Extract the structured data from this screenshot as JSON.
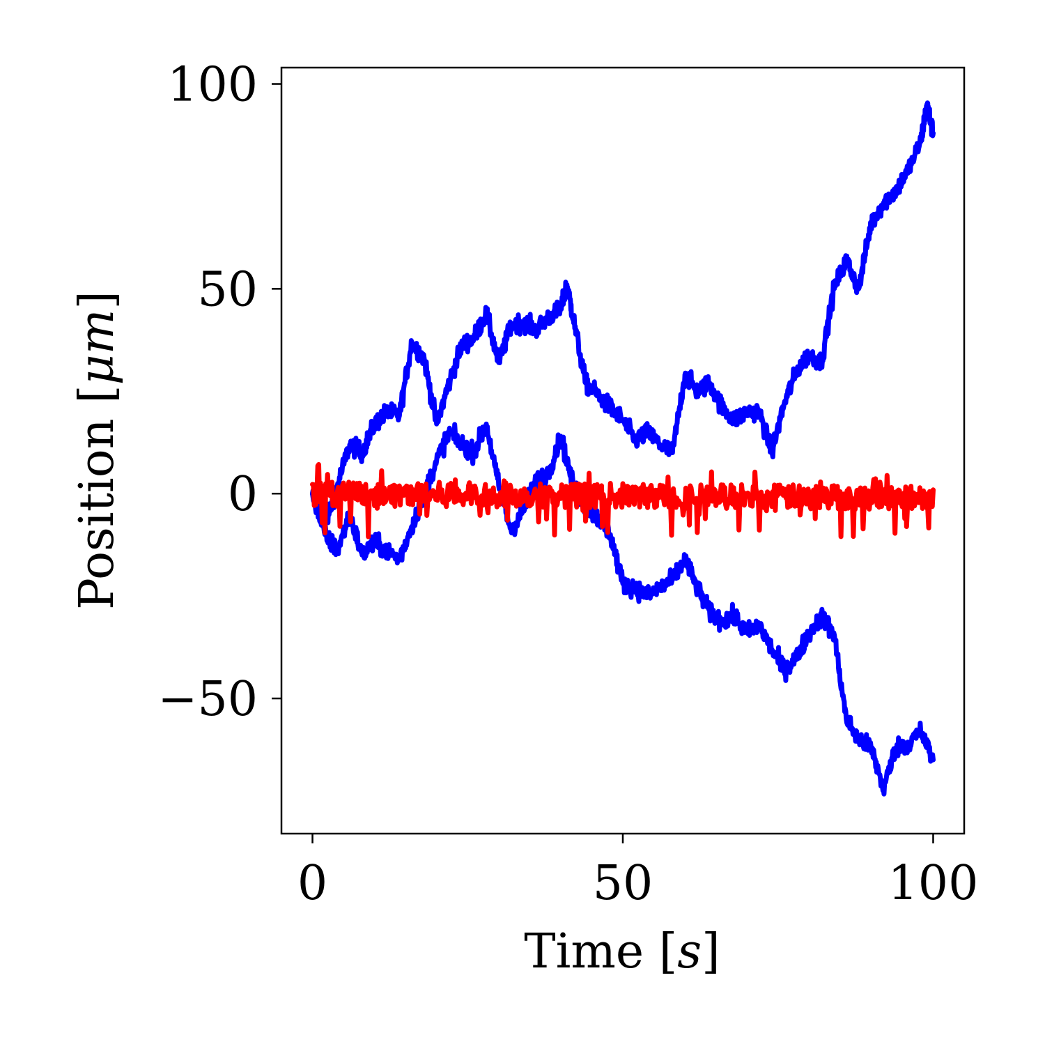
{
  "chart_data": {
    "type": "line",
    "xlabel": "Time [s]",
    "ylabel": "Position [μm]",
    "xlabel_parts": {
      "text": "Time [",
      "var": "s",
      "close": "]"
    },
    "ylabel_parts": {
      "text": "Position [",
      "var": "μm",
      "close": "]"
    },
    "xlim": [
      -5,
      105
    ],
    "ylim": [
      -83,
      104
    ],
    "xticks": [
      0,
      50,
      100
    ],
    "xtick_labels": [
      "0",
      "50",
      "100"
    ],
    "yticks": [
      -50,
      0,
      50,
      100
    ],
    "ytick_labels": [
      "−50",
      "0",
      "50",
      "100"
    ],
    "grid": false,
    "legend": "none",
    "series": [
      {
        "color": "#0000ff",
        "kind": "random-walk",
        "x": [
          0,
          2,
          4,
          6,
          8,
          10,
          12,
          14,
          16,
          18,
          20,
          22,
          24,
          26,
          28,
          30,
          32,
          34,
          36,
          38,
          40,
          41,
          42,
          44,
          46,
          48,
          50,
          52,
          54,
          56,
          58,
          60,
          62,
          64,
          66,
          68,
          70,
          72,
          74,
          76,
          78,
          80,
          82,
          84,
          86,
          88,
          90,
          92,
          94,
          96,
          98,
          99,
          100
        ],
        "values": [
          0,
          -8,
          2,
          12,
          10,
          17,
          20,
          19,
          37,
          33,
          17,
          27,
          36,
          38,
          44,
          32,
          41,
          42,
          40,
          43,
          45,
          51,
          43,
          27,
          24,
          21,
          18,
          13,
          15,
          12,
          10,
          29,
          25,
          27,
          21,
          18,
          20,
          20,
          10,
          22,
          30,
          34,
          32,
          50,
          57,
          50,
          66,
          71,
          74,
          79,
          86,
          95,
          88
        ]
      },
      {
        "color": "#0000ff",
        "kind": "random-walk",
        "x": [
          0,
          2,
          4,
          6,
          8,
          10,
          12,
          14,
          16,
          18,
          20,
          22,
          24,
          26,
          28,
          30,
          32,
          34,
          36,
          38,
          40,
          42,
          44,
          46,
          48,
          50,
          52,
          54,
          56,
          58,
          60,
          62,
          64,
          66,
          68,
          70,
          72,
          74,
          76,
          78,
          80,
          82,
          84,
          86,
          88,
          90,
          92,
          94,
          96,
          98,
          100
        ],
        "values": [
          0,
          -10,
          -14,
          -5,
          -15,
          -12,
          -14,
          -16,
          -8,
          0,
          8,
          15,
          12,
          10,
          17,
          2,
          -9,
          -4,
          3,
          5,
          14,
          2,
          -3,
          -6,
          -10,
          -22,
          -23,
          -25,
          -23,
          -21,
          -16,
          -23,
          -29,
          -31,
          -30,
          -34,
          -32,
          -38,
          -43,
          -40,
          -34,
          -30,
          -34,
          -55,
          -60,
          -62,
          -72,
          -62,
          -61,
          -58,
          -65
        ]
      },
      {
        "color": "#ff0000",
        "kind": "noise",
        "x": [
          0,
          100
        ],
        "values": [
          0,
          -1
        ],
        "noise_amplitude": 4
      }
    ]
  }
}
